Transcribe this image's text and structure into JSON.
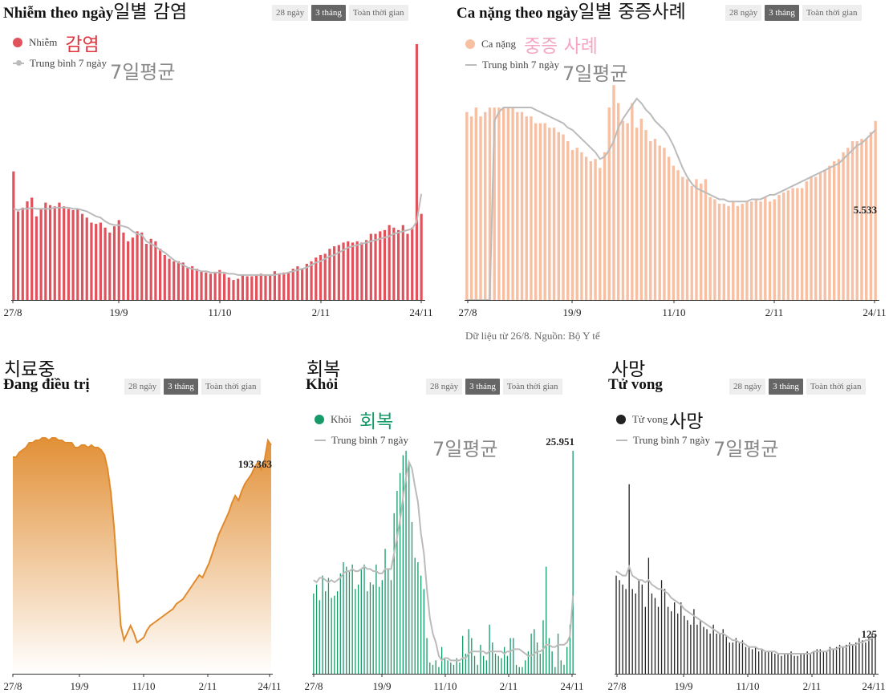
{
  "source": "Dữ liệu từ 26/8. Nguồn: Bộ Y tế",
  "tabs": [
    "28 ngày",
    "3 tháng",
    "Toàn thời gian"
  ],
  "active_tab": "3 tháng",
  "colors": {
    "infections": "#e0535c",
    "severe": "#f8c0a3",
    "treatment": "#e08a2c",
    "recovered": "#159a68",
    "deaths": "#222222",
    "avg": "#bbbbbb"
  },
  "panels": {
    "infections": {
      "title": "Nhiễm theo ngày",
      "title_ko": "일별 감염",
      "legend_series": "Nhiễm",
      "legend_series_ko": "감염",
      "legend_avg": "Trung bình 7 ngày",
      "legend_avg_ko": "7일평균",
      "end_label": ""
    },
    "severe": {
      "title": "Ca nặng theo ngày",
      "title_ko": "일별 중증사례",
      "legend_series": "Ca nặng",
      "legend_series_ko": "중증 사례",
      "legend_avg": "Trung bình 7 ngày",
      "legend_avg_ko": "7일평균",
      "end_label": "5.533"
    },
    "treatment": {
      "title": "Đang điều trị",
      "title_ko": "치료중",
      "end_label": "193.363"
    },
    "recovered": {
      "title": "Khỏi",
      "title_ko": "회복",
      "legend_series": "Khỏi",
      "legend_series_ko": "회복",
      "legend_avg": "Trung bình 7 ngày",
      "legend_avg_ko": "7일평균",
      "end_label": "25.951"
    },
    "deaths": {
      "title": "Tử vong",
      "title_ko": "사망",
      "legend_series": "Tử vong",
      "legend_series_ko": "사망",
      "legend_avg": "Trung bình 7 ngày",
      "legend_avg_ko": "7일평균",
      "end_label": "125"
    }
  },
  "chart_data": [
    {
      "id": "infections",
      "type": "bar",
      "x_ticks": [
        "27/8",
        "19/9",
        "11/10",
        "2/11",
        "24/11"
      ],
      "ylim": [
        0,
        20000
      ],
      "values": [
        10300,
        7100,
        7400,
        7900,
        8200,
        6700,
        7300,
        7800,
        7600,
        7500,
        7800,
        7500,
        7300,
        7200,
        7300,
        6900,
        6600,
        6200,
        6100,
        6200,
        5800,
        5400,
        5900,
        6400,
        5400,
        4700,
        5000,
        5500,
        5400,
        4500,
        4900,
        4700,
        4100,
        3600,
        3300,
        3100,
        3100,
        3000,
        2600,
        2700,
        2500,
        2300,
        2200,
        2100,
        2200,
        2400,
        2100,
        1800,
        1600,
        1700,
        2000,
        1900,
        1900,
        2000,
        2100,
        2000,
        2000,
        2300,
        2100,
        2200,
        2200,
        2500,
        2700,
        2500,
        2900,
        3100,
        3400,
        3600,
        3700,
        4100,
        4300,
        4400,
        4600,
        4700,
        4600,
        4700,
        4600,
        4800,
        5300,
        5300,
        5500,
        5600,
        6000,
        5800,
        5600,
        6000,
        5300,
        5800,
        20500,
        6900
      ],
      "avg": [
        7300,
        7200,
        7300,
        7300,
        7400,
        7300,
        7300,
        7300,
        7300,
        7400,
        7400,
        7400,
        7400,
        7300,
        7300,
        7200,
        7100,
        6900,
        6700,
        6600,
        6300,
        6100,
        6000,
        6000,
        5900,
        5800,
        5500,
        5300,
        5200,
        4700,
        4500,
        4300,
        4000,
        3800,
        3500,
        3200,
        3000,
        2800,
        2600,
        2500,
        2400,
        2300,
        2300,
        2200,
        2200,
        2200,
        2200,
        2100,
        2100,
        2000,
        2000,
        2000,
        2000,
        2000,
        2000,
        2000,
        2000,
        2000,
        2100,
        2100,
        2200,
        2300,
        2400,
        2500,
        2600,
        2800,
        3000,
        3100,
        3300,
        3500,
        3600,
        3800,
        4000,
        4200,
        4300,
        4400,
        4500,
        4600,
        4700,
        4800,
        4900,
        5000,
        5100,
        5300,
        5400,
        5500,
        5600,
        5700,
        6300,
        8500
      ],
      "x_start": "27/8"
    },
    {
      "id": "severe",
      "type": "bar",
      "x_ticks": [
        "27/8",
        "19/9",
        "11/10",
        "2/11",
        "24/11"
      ],
      "y_note": "normalized 0-1 of plotted height",
      "values": [
        0.84,
        0.82,
        0.86,
        0.82,
        0.84,
        0.86,
        0.86,
        0.86,
        0.86,
        0.86,
        0.86,
        0.84,
        0.84,
        0.82,
        0.82,
        0.79,
        0.79,
        0.79,
        0.77,
        0.77,
        0.75,
        0.74,
        0.71,
        0.67,
        0.68,
        0.66,
        0.64,
        0.62,
        0.63,
        0.59,
        0.66,
        0.86,
        0.96,
        0.88,
        0.8,
        0.79,
        0.88,
        0.77,
        0.81,
        0.76,
        0.71,
        0.72,
        0.69,
        0.68,
        0.64,
        0.6,
        0.58,
        0.55,
        0.54,
        0.51,
        0.54,
        0.52,
        0.54,
        0.46,
        0.45,
        0.43,
        0.43,
        0.42,
        0.44,
        0.42,
        0.43,
        0.44,
        0.44,
        0.45,
        0.44,
        0.46,
        0.44,
        0.45,
        0.47,
        0.48,
        0.49,
        0.5,
        0.5,
        0.5,
        0.53,
        0.55,
        0.55,
        0.57,
        0.58,
        0.6,
        0.62,
        0.63,
        0.66,
        0.68,
        0.71,
        0.71,
        0.72,
        0.72,
        0.75,
        0.8
      ],
      "avg": [
        0.0,
        0.0,
        0.0,
        0.0,
        0.0,
        0.0,
        0.8,
        0.84,
        0.86,
        0.86,
        0.86,
        0.86,
        0.86,
        0.86,
        0.86,
        0.85,
        0.84,
        0.83,
        0.82,
        0.81,
        0.8,
        0.79,
        0.77,
        0.76,
        0.74,
        0.72,
        0.7,
        0.68,
        0.66,
        0.63,
        0.64,
        0.67,
        0.71,
        0.77,
        0.81,
        0.84,
        0.87,
        0.9,
        0.88,
        0.85,
        0.83,
        0.8,
        0.78,
        0.76,
        0.73,
        0.69,
        0.64,
        0.59,
        0.55,
        0.52,
        0.5,
        0.49,
        0.48,
        0.47,
        0.46,
        0.45,
        0.45,
        0.44,
        0.44,
        0.44,
        0.44,
        0.44,
        0.45,
        0.45,
        0.45,
        0.46,
        0.47,
        0.47,
        0.48,
        0.49,
        0.5,
        0.51,
        0.52,
        0.53,
        0.54,
        0.55,
        0.56,
        0.57,
        0.58,
        0.59,
        0.6,
        0.61,
        0.63,
        0.65,
        0.67,
        0.69,
        0.7,
        0.72,
        0.74,
        0.76
      ],
      "last_value": "5.533"
    },
    {
      "id": "treatment",
      "type": "area",
      "x_ticks": [
        "27/8",
        "19/9",
        "11/10",
        "2/11",
        "24/11"
      ],
      "values": [
        0.9,
        0.9,
        0.92,
        0.93,
        0.94,
        0.96,
        0.96,
        0.97,
        0.97,
        0.98,
        0.98,
        0.97,
        0.98,
        0.98,
        0.97,
        0.97,
        0.96,
        0.96,
        0.96,
        0.94,
        0.94,
        0.95,
        0.95,
        0.94,
        0.95,
        0.94,
        0.94,
        0.93,
        0.91,
        0.85,
        0.75,
        0.6,
        0.4,
        0.2,
        0.14,
        0.17,
        0.2,
        0.17,
        0.13,
        0.14,
        0.15,
        0.18,
        0.2,
        0.21,
        0.22,
        0.23,
        0.24,
        0.25,
        0.26,
        0.27,
        0.29,
        0.3,
        0.31,
        0.33,
        0.35,
        0.37,
        0.39,
        0.41,
        0.4,
        0.43,
        0.46,
        0.5,
        0.54,
        0.58,
        0.61,
        0.64,
        0.67,
        0.71,
        0.74,
        0.72,
        0.76,
        0.79,
        0.81,
        0.83,
        0.86,
        0.88,
        0.85,
        0.89,
        0.97,
        0.95
      ],
      "last_value": "193.363"
    },
    {
      "id": "recovered",
      "type": "bar",
      "x_ticks": [
        "27/8",
        "19/9",
        "11/10",
        "2/11",
        "24/11"
      ],
      "values": [
        0.36,
        0.4,
        0.33,
        0.44,
        0.37,
        0.43,
        0.34,
        0.35,
        0.37,
        0.45,
        0.5,
        0.48,
        0.46,
        0.49,
        0.38,
        0.4,
        0.47,
        0.49,
        0.37,
        0.41,
        0.4,
        0.49,
        0.39,
        0.42,
        0.56,
        0.47,
        0.42,
        0.72,
        0.82,
        0.9,
        0.98,
        1.0,
        0.95,
        0.68,
        0.52,
        0.5,
        0.44,
        0.38,
        0.16,
        0.05,
        0.04,
        0.06,
        0.03,
        0.12,
        0.07,
        0.06,
        0.05,
        0.04,
        0.07,
        0.05,
        0.17,
        0.09,
        0.2,
        0.16,
        0.08,
        0.04,
        0.13,
        0.08,
        0.06,
        0.22,
        0.14,
        0.09,
        0.08,
        0.07,
        0.12,
        0.08,
        0.16,
        0.16,
        0.04,
        0.03,
        0.03,
        0.06,
        0.1,
        0.18,
        0.2,
        0.14,
        0.09,
        0.24,
        0.48,
        0.16,
        0.1,
        0.03,
        0.18,
        0.06,
        0.04,
        0.12,
        0.22,
        1.0
      ],
      "avg": [
        0.42,
        0.41,
        0.43,
        0.43,
        0.42,
        0.41,
        0.42,
        0.41,
        0.42,
        0.43,
        0.45,
        0.46,
        0.46,
        0.47,
        0.46,
        0.46,
        0.47,
        0.48,
        0.47,
        0.47,
        0.46,
        0.46,
        0.45,
        0.45,
        0.47,
        0.47,
        0.47,
        0.54,
        0.61,
        0.69,
        0.79,
        0.88,
        0.95,
        0.92,
        0.84,
        0.77,
        0.63,
        0.54,
        0.38,
        0.25,
        0.18,
        0.14,
        0.08,
        0.06,
        0.07,
        0.07,
        0.06,
        0.06,
        0.06,
        0.06,
        0.07,
        0.07,
        0.09,
        0.1,
        0.1,
        0.1,
        0.1,
        0.1,
        0.09,
        0.1,
        0.1,
        0.1,
        0.1,
        0.1,
        0.09,
        0.1,
        0.1,
        0.11,
        0.11,
        0.11,
        0.1,
        0.09,
        0.08,
        0.08,
        0.09,
        0.1,
        0.1,
        0.11,
        0.13,
        0.13,
        0.12,
        0.12,
        0.13,
        0.13,
        0.13,
        0.14,
        0.17,
        0.35
      ],
      "last_value": "25.951"
    },
    {
      "id": "deaths",
      "type": "bar",
      "x_ticks": [
        "27/8",
        "19/9",
        "11/10",
        "2/11",
        "24/11"
      ],
      "values": [
        0.44,
        0.42,
        0.4,
        0.38,
        0.85,
        0.38,
        0.36,
        0.42,
        0.4,
        0.3,
        0.52,
        0.36,
        0.34,
        0.3,
        0.42,
        0.38,
        0.3,
        0.28,
        0.32,
        0.27,
        0.32,
        0.26,
        0.24,
        0.22,
        0.29,
        0.22,
        0.24,
        0.21,
        0.2,
        0.18,
        0.22,
        0.18,
        0.18,
        0.2,
        0.17,
        0.14,
        0.14,
        0.16,
        0.14,
        0.15,
        0.12,
        0.12,
        0.11,
        0.12,
        0.1,
        0.11,
        0.1,
        0.1,
        0.1,
        0.09,
        0.09,
        0.08,
        0.09,
        0.09,
        0.1,
        0.08,
        0.08,
        0.09,
        0.09,
        0.1,
        0.09,
        0.1,
        0.11,
        0.11,
        0.1,
        0.1,
        0.12,
        0.11,
        0.12,
        0.13,
        0.12,
        0.13,
        0.14,
        0.13,
        0.14,
        0.16,
        0.15,
        0.14,
        0.16,
        0.18,
        0.17
      ],
      "avg": [
        0.46,
        0.45,
        0.44,
        0.44,
        0.48,
        0.44,
        0.43,
        0.42,
        0.42,
        0.41,
        0.42,
        0.4,
        0.39,
        0.38,
        0.38,
        0.37,
        0.36,
        0.34,
        0.33,
        0.32,
        0.31,
        0.29,
        0.28,
        0.27,
        0.26,
        0.25,
        0.24,
        0.23,
        0.22,
        0.21,
        0.2,
        0.19,
        0.18,
        0.18,
        0.17,
        0.16,
        0.15,
        0.15,
        0.14,
        0.14,
        0.13,
        0.12,
        0.12,
        0.12,
        0.11,
        0.11,
        0.1,
        0.1,
        0.1,
        0.1,
        0.09,
        0.09,
        0.09,
        0.09,
        0.09,
        0.09,
        0.09,
        0.09,
        0.09,
        0.09,
        0.09,
        0.1,
        0.1,
        0.1,
        0.1,
        0.1,
        0.11,
        0.11,
        0.11,
        0.12,
        0.12,
        0.12,
        0.13,
        0.13,
        0.13,
        0.14,
        0.14,
        0.15,
        0.15,
        0.16,
        0.17
      ],
      "last_value": "125"
    }
  ]
}
